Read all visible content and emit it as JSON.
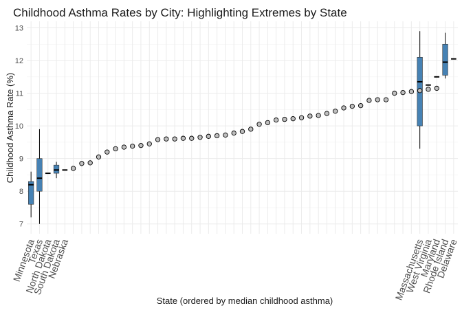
{
  "chart_data": {
    "type": "boxplot-dotplot",
    "title": "Childhood Asthma Rates by City: Highlighting Extremes by State",
    "xlabel": "State (ordered by median childhood asthma)",
    "ylabel": "Childhood Asthma Rate (%)",
    "ylim": [
      6.7,
      13.2
    ],
    "yticks": [
      7,
      8,
      9,
      10,
      11,
      12,
      13
    ],
    "grid": true,
    "n_states": 51,
    "colors": {
      "box_fill": "#4682B4",
      "point_fill": "#bebebe",
      "outline": "#000000"
    },
    "categories": [
      "Minnesota",
      "Texas",
      "North Dakota",
      "South Dakota",
      "Nebraska",
      "",
      "",
      "",
      "",
      "",
      "",
      "",
      "",
      "",
      "",
      "",
      "",
      "",
      "",
      "",
      "",
      "",
      "",
      "",
      "",
      "",
      "",
      "",
      "",
      "",
      "",
      "",
      "",
      "",
      "",
      "",
      "",
      "",
      "",
      "",
      "",
      "",
      "",
      "",
      "",
      "",
      "Massachusetts",
      "West Virginia",
      "Maryland",
      "Rhode Island",
      "Delaware"
    ],
    "boxes": [
      {
        "index": 0,
        "state": "Minnesota",
        "min": 7.2,
        "q1": 7.6,
        "median": 8.2,
        "q3": 8.3,
        "max": 8.6
      },
      {
        "index": 1,
        "state": "Texas",
        "min": 7.0,
        "q1": 8.0,
        "median": 8.4,
        "q3": 9.0,
        "max": 9.9
      },
      {
        "index": 2,
        "state": "North Dakota",
        "min": 8.55,
        "q1": 8.55,
        "median": 8.55,
        "q3": 8.55,
        "max": 8.55
      },
      {
        "index": 3,
        "state": "South Dakota",
        "min": 8.4,
        "q1": 8.55,
        "median": 8.65,
        "q3": 8.8,
        "max": 8.9
      },
      {
        "index": 4,
        "state": "Nebraska",
        "min": 8.65,
        "q1": 8.65,
        "median": 8.65,
        "q3": 8.65,
        "max": 8.65
      },
      {
        "index": 46,
        "state": "Massachusetts",
        "min": 9.3,
        "q1": 10.0,
        "median": 11.35,
        "q3": 12.1,
        "max": 12.9
      },
      {
        "index": 47,
        "state": "West Virginia",
        "min": 11.25,
        "q1": 11.25,
        "median": 11.25,
        "q3": 11.25,
        "max": 11.25
      },
      {
        "index": 48,
        "state": "Maryland",
        "min": 11.5,
        "q1": 11.5,
        "median": 11.5,
        "q3": 11.5,
        "max": 11.5
      },
      {
        "index": 49,
        "state": "Rhode Island",
        "min": 11.45,
        "q1": 11.55,
        "median": 11.95,
        "q3": 12.5,
        "max": 12.85
      },
      {
        "index": 50,
        "state": "Delaware",
        "min": 12.05,
        "q1": 12.05,
        "median": 12.05,
        "q3": 12.05,
        "max": 12.05
      }
    ],
    "points": [
      8.7,
      8.85,
      8.87,
      9.05,
      9.2,
      9.3,
      9.35,
      9.38,
      9.4,
      9.45,
      9.58,
      9.6,
      9.6,
      9.62,
      9.62,
      9.65,
      9.68,
      9.7,
      9.72,
      9.78,
      9.83,
      9.9,
      10.05,
      10.1,
      10.18,
      10.2,
      10.22,
      10.25,
      10.3,
      10.32,
      10.38,
      10.45,
      10.55,
      10.6,
      10.62,
      10.78,
      10.8,
      10.8,
      11.0,
      11.02,
      11.05,
      11.08,
      11.12,
      11.15
    ]
  }
}
